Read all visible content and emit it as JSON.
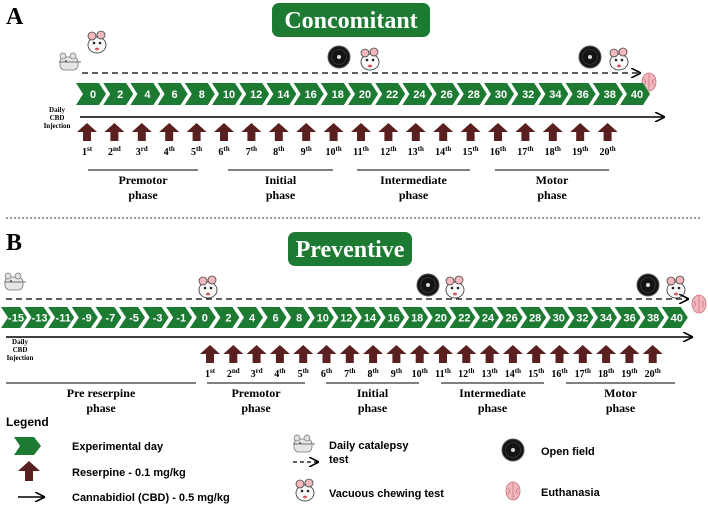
{
  "panel_a": {
    "letter": "A",
    "title": "Concomitant",
    "cbd_label": [
      "Daily",
      "CBD",
      "Injection"
    ],
    "days": [
      "0",
      "2",
      "4",
      "6",
      "8",
      "10",
      "12",
      "14",
      "16",
      "18",
      "20",
      "22",
      "24",
      "26",
      "28",
      "30",
      "32",
      "34",
      "36",
      "38",
      "40"
    ],
    "injections": [
      "1",
      "2",
      "3",
      "4",
      "5",
      "6",
      "7",
      "8",
      "9",
      "10",
      "11",
      "12",
      "13",
      "14",
      "15",
      "16",
      "17",
      "18",
      "19",
      "20"
    ],
    "suffixes": [
      "st",
      "nd",
      "rd",
      "th",
      "th",
      "th",
      "th",
      "th",
      "th",
      "th",
      "th",
      "th",
      "th",
      "th",
      "th",
      "th",
      "th",
      "th",
      "th",
      "th"
    ],
    "phases": [
      {
        "lines": [
          "Premotor",
          "phase"
        ]
      },
      {
        "lines": [
          "Initial",
          "phase"
        ]
      },
      {
        "lines": [
          "Intermediate",
          "phase"
        ]
      },
      {
        "lines": [
          "Motor",
          "phase"
        ]
      }
    ]
  },
  "panel_b": {
    "letter": "B",
    "title": "Preventive",
    "cbd_label": [
      "Daily",
      "CBD",
      "Injection"
    ],
    "days": [
      "-15",
      "-13",
      "-11",
      "-9",
      "-7",
      "-5",
      "-3",
      "-1",
      "0",
      "2",
      "4",
      "6",
      "8",
      "10",
      "12",
      "14",
      "16",
      "18",
      "20",
      "22",
      "24",
      "26",
      "28",
      "30",
      "32",
      "34",
      "36",
      "38",
      "40"
    ],
    "injections": [
      "1",
      "2",
      "3",
      "4",
      "5",
      "6",
      "7",
      "8",
      "9",
      "10",
      "11",
      "12",
      "13",
      "14",
      "15",
      "16",
      "17",
      "18",
      "19",
      "20"
    ],
    "suffixes": [
      "st",
      "nd",
      "rd",
      "th",
      "th",
      "th",
      "th",
      "th",
      "th",
      "th",
      "th",
      "th",
      "th",
      "th",
      "th",
      "th",
      "th",
      "th",
      "th",
      "th"
    ],
    "phases": [
      {
        "lines": [
          "Pre reserpine",
          "phase"
        ]
      },
      {
        "lines": [
          "Premotor",
          "phase"
        ]
      },
      {
        "lines": [
          "Initial",
          "phase"
        ]
      },
      {
        "lines": [
          "Intermediate",
          "phase"
        ]
      },
      {
        "lines": [
          "Motor",
          "phase"
        ]
      }
    ]
  },
  "legend": {
    "heading": "Legend",
    "experimental_day": "Experimental day",
    "reserpine": "Reserpine - 0.1 mg/kg",
    "cbd": "Cannabidiol (CBD) - 0.5 mg/kg",
    "catalepsy": [
      "Daily catalepsy",
      "test"
    ],
    "vacuous": "Vacuous chewing test",
    "open_field": "Open field",
    "euthanasia": "Euthanasia"
  },
  "colors": {
    "green": "#1d7a32",
    "reserpine": "#5a2020",
    "brain": "#f2b8bd"
  },
  "icons": [
    "mouse-icon",
    "vacuous-chewing-icon",
    "open-field-icon",
    "brain-icon",
    "reserpine-arrow-icon",
    "day-chevron-icon"
  ]
}
